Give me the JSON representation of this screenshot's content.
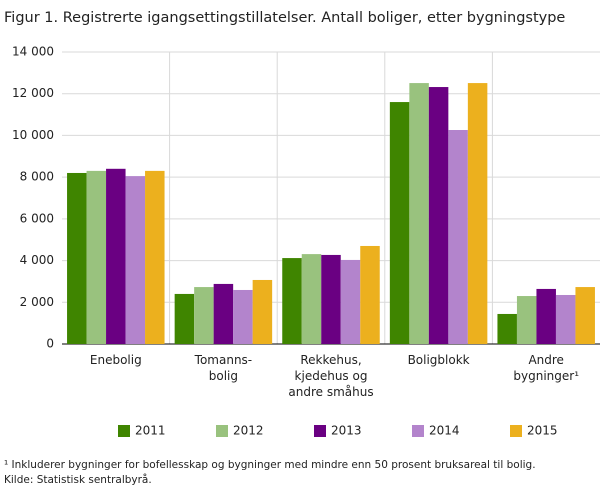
{
  "chart_data": {
    "type": "bar",
    "title": "Figur 1. Registrerte igangsettingstillatelser. Antall boliger, etter bygningstype",
    "categories": [
      "Enebolig",
      "Tomanns-\nbolig",
      "Rekkehus,\nkjedehus og\nandre småhus",
      "Boligblokk",
      "Andre\nbygninger¹"
    ],
    "series": [
      {
        "name": "2011",
        "color": "#3f8500",
        "values": [
          8200,
          2400,
          4120,
          11600,
          1440
        ]
      },
      {
        "name": "2012",
        "color": "#99c27e",
        "values": [
          8300,
          2730,
          4310,
          12510,
          2300
        ]
      },
      {
        "name": "2013",
        "color": "#6a0082",
        "values": [
          8400,
          2880,
          4270,
          12320,
          2640
        ]
      },
      {
        "name": "2014",
        "color": "#b384cc",
        "values": [
          8050,
          2590,
          4030,
          10260,
          2350
        ]
      },
      {
        "name": "2015",
        "color": "#ecb01e",
        "values": [
          8300,
          3070,
          4700,
          12510,
          2730
        ]
      }
    ],
    "ylim": [
      0,
      14000
    ],
    "yticks": [
      0,
      {
        "value": 2000,
        "label": "2 000"
      },
      {
        "value": 4000,
        "label": "4 000"
      },
      {
        "value": 6000,
        "label": "6 000"
      },
      {
        "value": 8000,
        "label": "8 000"
      },
      {
        "value": 10000,
        "label": "10 000"
      },
      {
        "value": 12000,
        "label": "12 000"
      },
      {
        "value": 14000,
        "label": "14 000"
      }
    ],
    "grid": true,
    "footnote": "¹ Inkluderer bygninger for bofellesskap og bygninger med mindre enn 50 prosent bruksareal til bolig.",
    "source": "Kilde: Statistisk sentralbyrå."
  }
}
